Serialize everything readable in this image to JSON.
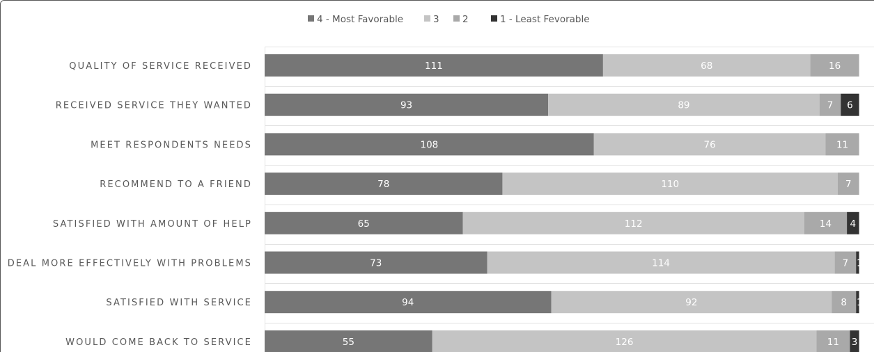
{
  "chart_data": {
    "type": "bar",
    "orientation": "horizontal",
    "stacked": true,
    "categories": [
      "QUALITY OF SERVICE RECEIVED",
      "RECEIVED SERVICE THEY WANTED",
      "MEET RESPONDENTS NEEDS",
      "RECOMMEND TO A FRIEND",
      "SATISFIED WITH AMOUNT OF HELP",
      "DEAL MORE EFFECTIVELY WITH PROBLEMS",
      "SATISFIED WITH SERVICE",
      "WOULD COME BACK TO SERVICE"
    ],
    "series": [
      {
        "name": "4 - Most Favorable",
        "color": "#767676",
        "values": [
          111,
          93,
          108,
          78,
          65,
          73,
          94,
          55
        ]
      },
      {
        "name": "3",
        "color": "#c4c4c4",
        "values": [
          68,
          89,
          76,
          110,
          112,
          114,
          92,
          126
        ]
      },
      {
        "name": "2",
        "color": "#a9a9a9",
        "values": [
          16,
          7,
          11,
          7,
          14,
          7,
          8,
          11
        ]
      },
      {
        "name": "1 - Least Fevorable",
        "color": "#333333",
        "values": [
          0,
          6,
          0,
          0,
          4,
          1,
          1,
          3
        ]
      }
    ],
    "legend_position": "top",
    "grid": true,
    "data_labels": true
  }
}
